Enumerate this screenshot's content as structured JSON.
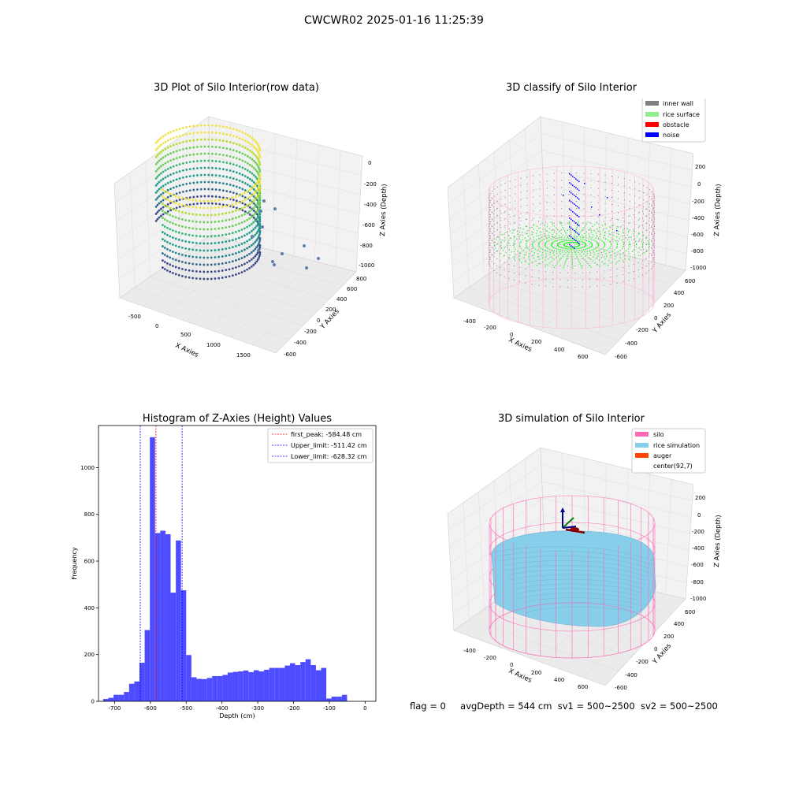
{
  "figure": {
    "suptitle": "CWCWR02 2025-01-16 11:25:39",
    "status": {
      "flag": "flag = 0",
      "avg_depth": "avgDepth = 544 cm",
      "sv1": "sv1 = 500~2500",
      "sv2": "sv2 = 500~2500"
    }
  },
  "colors": {
    "histogram": "#4d4dff",
    "first_peak": "#ff0000",
    "limits": "#0000ff",
    "inner_wall": "#808080",
    "rice_surface": "#90ee90",
    "obstacle": "#ff0000",
    "noise": "#0000ff",
    "silo": "#ff69b4",
    "rice_simulation": "#87ceeb",
    "auger": "#ff4500"
  },
  "panels": {
    "raw": {
      "title": "3D Plot of Silo Interior(row data)",
      "x_label": "X Axies",
      "y_label": "Y Axies",
      "z_label": "Z Axies (Depth)",
      "x_ticks": [
        "-500",
        "0",
        "500",
        "1000",
        "1500"
      ],
      "y_ticks": [
        "-600",
        "-400",
        "-200",
        "0",
        "200",
        "400",
        "600",
        "800"
      ],
      "z_ticks": [
        "0",
        "-200",
        "-400",
        "-600",
        "-800",
        "-1000"
      ]
    },
    "classify": {
      "title": "3D classify of Silo Interior",
      "x_label": "X Axies",
      "y_label": "Y Axies",
      "z_label": "Z Axies (Depth)",
      "x_ticks": [
        "-400",
        "-200",
        "0",
        "200",
        "400",
        "600"
      ],
      "y_ticks": [
        "-600",
        "-400",
        "-200",
        "0",
        "200",
        "400",
        "600"
      ],
      "z_ticks": [
        "200",
        "0",
        "-200",
        "-400",
        "-600",
        "-800",
        "-1000"
      ],
      "legend": [
        "inner wall",
        "rice surface",
        "obstacle",
        "noise"
      ]
    },
    "simulation": {
      "title": "3D simulation of Silo Interior",
      "x_label": "X Axies",
      "y_label": "Y Axies",
      "z_label": "Z Axies (Depth)",
      "x_ticks": [
        "-400",
        "-200",
        "0",
        "200",
        "400",
        "600"
      ],
      "y_ticks": [
        "-600",
        "-400",
        "-200",
        "0",
        "200",
        "400",
        "600"
      ],
      "z_ticks": [
        "200",
        "0",
        "-200",
        "-400",
        "-600",
        "-800",
        "-1000"
      ],
      "legend": [
        "silo",
        "rice simulation",
        "auger",
        "center(92,7)"
      ]
    }
  },
  "chart_data": {
    "type": "bar",
    "title": "Histogram of Z-Axies (Height) Values",
    "xlabel": "Depth (cm)",
    "ylabel": "Frequency",
    "xlim": [
      -745,
      30
    ],
    "ylim": [
      0,
      1180
    ],
    "x_ticks": [
      -700,
      -600,
      -500,
      -400,
      -300,
      -200,
      -100,
      0
    ],
    "y_ticks": [
      0,
      200,
      400,
      600,
      800,
      1000
    ],
    "bin_start": -732,
    "bin_width": 14.5,
    "values": [
      10,
      15,
      28,
      28,
      40,
      75,
      85,
      165,
      305,
      1130,
      720,
      730,
      715,
      465,
      688,
      475,
      198,
      103,
      96,
      95,
      100,
      108,
      108,
      113,
      123,
      126,
      128,
      132,
      125,
      133,
      128,
      135,
      143,
      143,
      143,
      153,
      163,
      155,
      168,
      180,
      155,
      133,
      143,
      12,
      20,
      20,
      28
    ],
    "lines": [
      {
        "label": "first_peak: -584.48 cm",
        "x": -584.48,
        "color": "#ff0000"
      },
      {
        "label": "Upper_limit: -511.42 cm",
        "x": -511.42,
        "color": "#0000ff"
      },
      {
        "label": "Lower_limit: -628.32 cm",
        "x": -628.32,
        "color": "#0000ff"
      }
    ],
    "legend_position": "upper right"
  }
}
